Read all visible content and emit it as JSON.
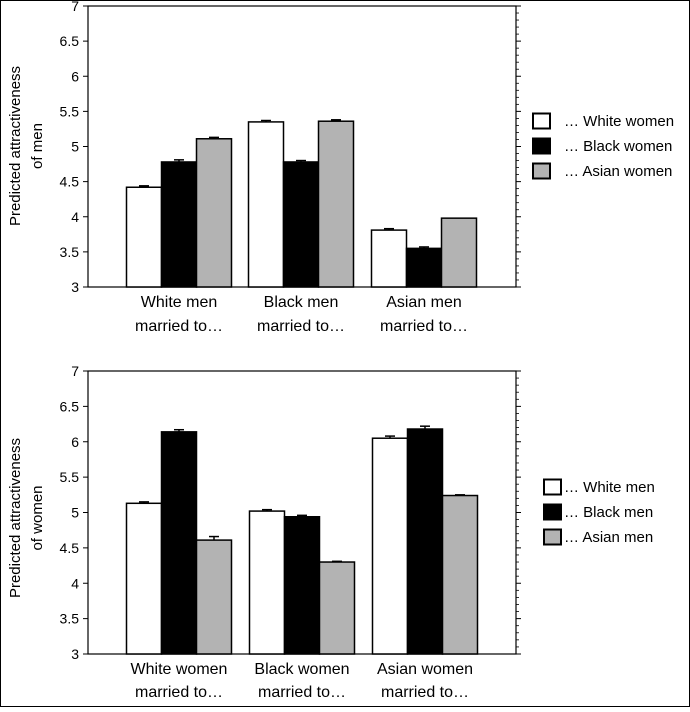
{
  "chart_data": [
    {
      "type": "bar",
      "ylabel": [
        "Predicted attractiveness",
        "of men"
      ],
      "ylim": [
        3,
        7
      ],
      "yticks": [
        "3",
        "3.5",
        "4",
        "4.5",
        "5",
        "5.5",
        "6",
        "6.5",
        "7"
      ],
      "categories": [
        [
          "White men",
          "married to…"
        ],
        [
          "Black men",
          "married to…"
        ],
        [
          "Asian men",
          "married to…"
        ]
      ],
      "series": [
        {
          "name": "… White women",
          "color": "#ffffff",
          "values": [
            4.42,
            5.35,
            3.81
          ],
          "errors": [
            0.02,
            0.02,
            0.02
          ]
        },
        {
          "name": "… Black women",
          "color": "#000000",
          "values": [
            4.78,
            4.78,
            3.55
          ],
          "errors": [
            0.03,
            0.02,
            0.02
          ]
        },
        {
          "name": "… Asian women",
          "color": "#b3b3b3",
          "values": [
            5.11,
            5.36,
            3.98
          ],
          "errors": [
            0.02,
            0.02,
            0.0
          ]
        }
      ],
      "legend_position": "right"
    },
    {
      "type": "bar",
      "ylabel": [
        "Predicted attractiveness",
        "of women"
      ],
      "ylim": [
        3,
        7
      ],
      "yticks": [
        "3",
        "3.5",
        "4",
        "4.5",
        "5",
        "5.5",
        "6",
        "6.5",
        "7"
      ],
      "categories": [
        [
          "White women",
          "married to…"
        ],
        [
          "Black women",
          "married to…"
        ],
        [
          "Asian women",
          "married to…"
        ]
      ],
      "series": [
        {
          "name": "… White men",
          "color": "#ffffff",
          "values": [
            5.13,
            5.02,
            6.05
          ],
          "errors": [
            0.02,
            0.02,
            0.03
          ]
        },
        {
          "name": "… Black men",
          "color": "#000000",
          "values": [
            6.14,
            4.94,
            6.18
          ],
          "errors": [
            0.03,
            0.02,
            0.04
          ]
        },
        {
          "name": "… Asian men",
          "color": "#b3b3b3",
          "values": [
            4.61,
            4.3,
            5.24
          ],
          "errors": [
            0.05,
            0.01,
            0.01
          ]
        }
      ],
      "legend_position": "right"
    }
  ]
}
